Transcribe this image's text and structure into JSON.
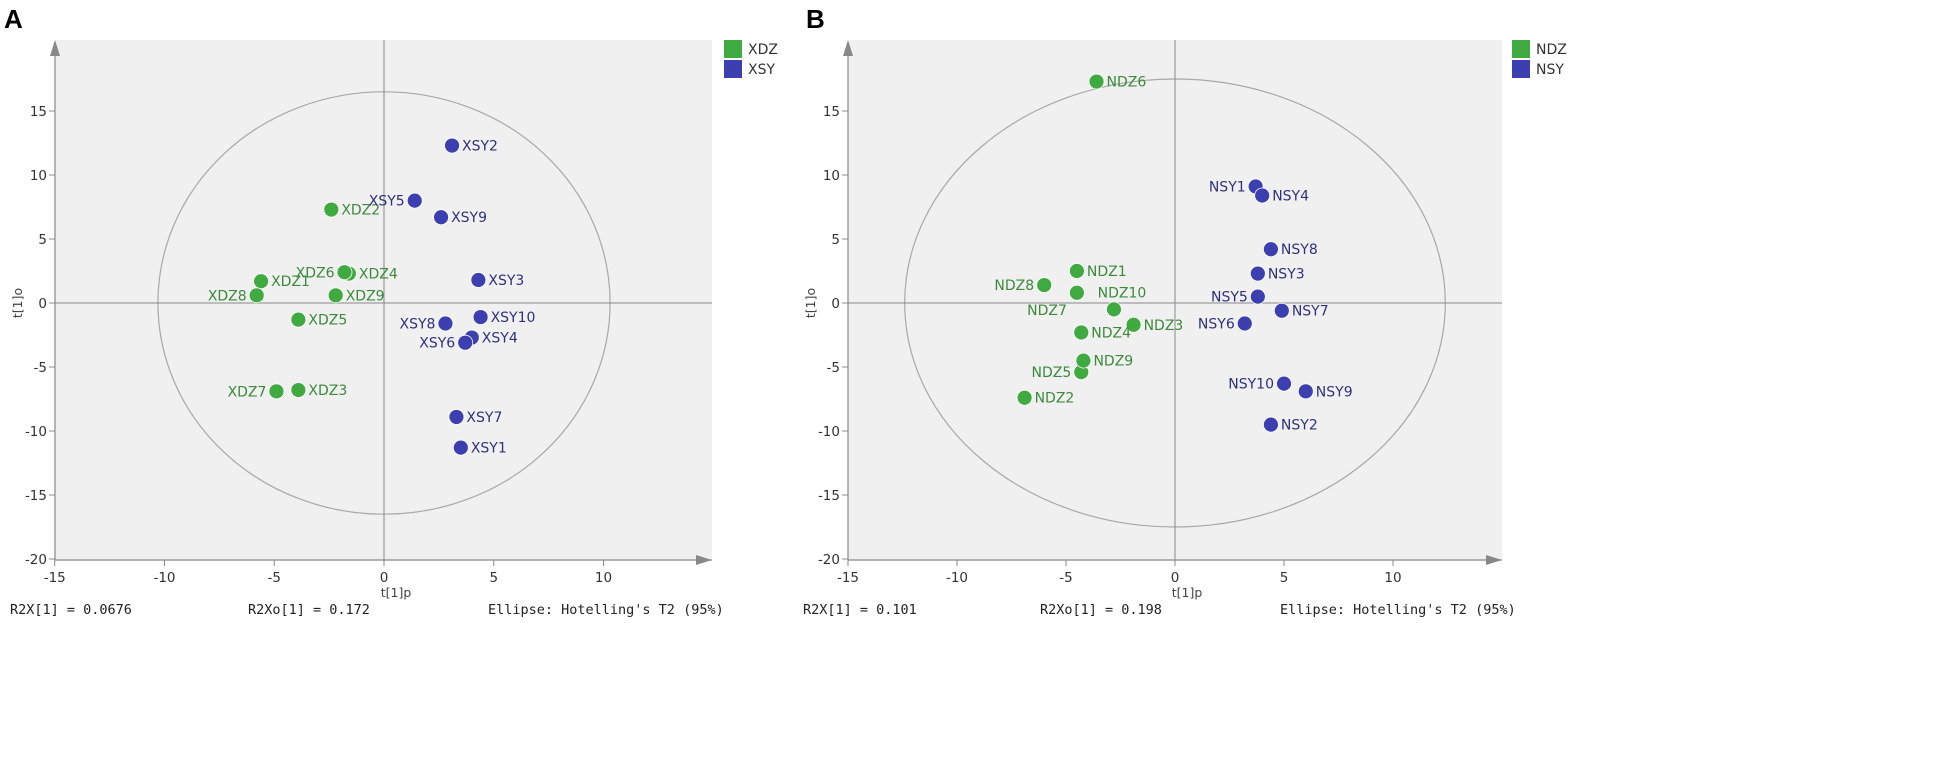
{
  "colors": {
    "green": "#3faa3f",
    "green_label": "#3a8a3a",
    "blue": "#3b3fb0",
    "blue_label": "#2e327e",
    "plot_bg": "#f0f0f0",
    "axis": "#888888",
    "ellipse": "#a8a8a8"
  },
  "chart_data": [
    {
      "type": "scatter",
      "panel": "A",
      "xlabel": "t[1]p",
      "ylabel": "t[1]o",
      "xlim": [
        -15,
        15
      ],
      "ylim": [
        -20,
        20
      ],
      "x_ticks": [
        -15,
        -10,
        -5,
        0,
        5,
        10
      ],
      "y_ticks": [
        -20,
        -15,
        -10,
        -5,
        0,
        5,
        10,
        15
      ],
      "ellipse": {
        "rx": 10.3,
        "ry": 16.5
      },
      "legend": [
        "XDZ",
        "XSY"
      ],
      "series": [
        {
          "name": "XDZ",
          "color": "green",
          "points": [
            {
              "label": "XDZ1",
              "x": -5.6,
              "y": 1.7,
              "side": "right"
            },
            {
              "label": "XDZ2",
              "x": -2.4,
              "y": 7.3,
              "side": "right"
            },
            {
              "label": "XDZ3",
              "x": -3.9,
              "y": -6.8,
              "side": "right"
            },
            {
              "label": "XDZ4",
              "x": -1.6,
              "y": 2.3,
              "side": "right"
            },
            {
              "label": "XDZ5",
              "x": -3.9,
              "y": -1.3,
              "side": "right"
            },
            {
              "label": "XDZ6",
              "x": -1.8,
              "y": 2.4,
              "side": "left"
            },
            {
              "label": "XDZ7",
              "x": -4.9,
              "y": -6.9,
              "side": "left"
            },
            {
              "label": "XDZ8",
              "x": -5.8,
              "y": 0.6,
              "side": "left"
            },
            {
              "label": "XDZ9",
              "x": -2.2,
              "y": 0.6,
              "side": "right"
            }
          ]
        },
        {
          "name": "XSY",
          "color": "blue",
          "points": [
            {
              "label": "XSY1",
              "x": 3.5,
              "y": -11.3,
              "side": "right"
            },
            {
              "label": "XSY2",
              "x": 3.1,
              "y": 12.3,
              "side": "right"
            },
            {
              "label": "XSY3",
              "x": 4.3,
              "y": 1.8,
              "side": "right"
            },
            {
              "label": "XSY4",
              "x": 4.0,
              "y": -2.7,
              "side": "right"
            },
            {
              "label": "XSY5",
              "x": 1.4,
              "y": 8.0,
              "side": "left"
            },
            {
              "label": "XSY6",
              "x": 3.7,
              "y": -3.1,
              "side": "left"
            },
            {
              "label": "XSY7",
              "x": 3.3,
              "y": -8.9,
              "side": "right"
            },
            {
              "label": "XSY8",
              "x": 2.8,
              "y": -1.6,
              "side": "left"
            },
            {
              "label": "XSY9",
              "x": 2.6,
              "y": 6.7,
              "side": "right"
            },
            {
              "label": "XSY10",
              "x": 4.4,
              "y": -1.1,
              "side": "right"
            }
          ]
        }
      ],
      "stats": {
        "r2x": "R2X[1] = 0.0676",
        "r2xo": "R2Xo[1] = 0.172",
        "ellipse": "Ellipse: Hotelling's T2 (95%)"
      }
    },
    {
      "type": "scatter",
      "panel": "B",
      "xlabel": "t[1]p",
      "ylabel": "t[1]o",
      "xlim": [
        -15,
        15
      ],
      "ylim": [
        -20,
        20
      ],
      "x_ticks": [
        -15,
        -10,
        -5,
        0,
        5,
        10
      ],
      "y_ticks": [
        -20,
        -15,
        -10,
        -5,
        0,
        5,
        10,
        15
      ],
      "ellipse": {
        "rx": 12.4,
        "ry": 17.5
      },
      "legend": [
        "NDZ",
        "NSY"
      ],
      "series": [
        {
          "name": "NDZ",
          "color": "green",
          "points": [
            {
              "label": "NDZ1",
              "x": -4.5,
              "y": 2.5,
              "side": "right"
            },
            {
              "label": "NDZ2",
              "x": -6.9,
              "y": -7.4,
              "side": "right"
            },
            {
              "label": "NDZ3",
              "x": -1.9,
              "y": -1.7,
              "side": "right"
            },
            {
              "label": "NDZ4",
              "x": -4.3,
              "y": -2.3,
              "side": "right"
            },
            {
              "label": "NDZ5",
              "x": -4.3,
              "y": -5.4,
              "side": "left"
            },
            {
              "label": "NDZ6",
              "x": -3.6,
              "y": 17.3,
              "side": "right"
            },
            {
              "label": "NDZ7",
              "x": -4.5,
              "y": 0.8,
              "side": "left-below"
            },
            {
              "label": "NDZ8",
              "x": -6.0,
              "y": 1.4,
              "side": "left"
            },
            {
              "label": "NDZ9",
              "x": -4.2,
              "y": -4.5,
              "side": "right"
            },
            {
              "label": "NDZ10",
              "x": -2.8,
              "y": -0.5,
              "side": "above"
            }
          ]
        },
        {
          "name": "NSY",
          "color": "blue",
          "points": [
            {
              "label": "NSY1",
              "x": 3.7,
              "y": 9.1,
              "side": "left"
            },
            {
              "label": "NSY2",
              "x": 4.4,
              "y": -9.5,
              "side": "right"
            },
            {
              "label": "NSY3",
              "x": 3.8,
              "y": 2.3,
              "side": "right"
            },
            {
              "label": "NSY4",
              "x": 4.0,
              "y": 8.4,
              "side": "right"
            },
            {
              "label": "NSY5",
              "x": 3.8,
              "y": 0.5,
              "side": "left"
            },
            {
              "label": "NSY6",
              "x": 3.2,
              "y": -1.6,
              "side": "left"
            },
            {
              "label": "NSY7",
              "x": 4.9,
              "y": -0.6,
              "side": "right"
            },
            {
              "label": "NSY8",
              "x": 4.4,
              "y": 4.2,
              "side": "right"
            },
            {
              "label": "NSY9",
              "x": 6.0,
              "y": -6.9,
              "side": "right"
            },
            {
              "label": "NSY10",
              "x": 5.0,
              "y": -6.3,
              "side": "left"
            }
          ]
        }
      ],
      "stats": {
        "r2x": "R2X[1] = 0.101",
        "r2xo": "R2Xo[1] = 0.198",
        "ellipse": "Ellipse: Hotelling's T2 (95%)"
      }
    }
  ]
}
